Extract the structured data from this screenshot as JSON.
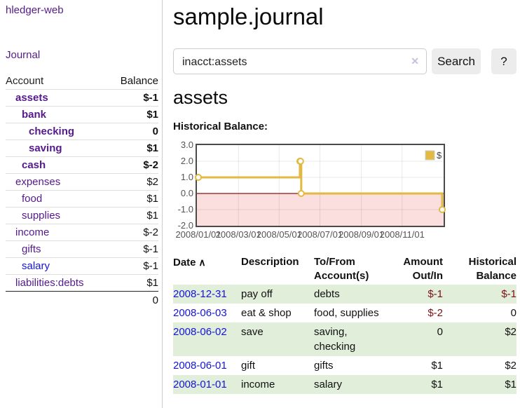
{
  "colors": {
    "accent": "#551a8b",
    "linkblue": "#1414dd",
    "negdark": "#7e1113",
    "negmuted": "#aa5555",
    "rowgreen": "#e1eeda",
    "chartline": "#e2ba41",
    "zeroline": "#8b1515",
    "negregion": "#fbdede"
  },
  "app": {
    "brand": "hledger-web",
    "nav_journal": "Journal"
  },
  "sidebar": {
    "col_account": "Account",
    "col_balance": "Balance",
    "rows": [
      {
        "account": "assets",
        "balance": "$-1",
        "depth": 1,
        "bold": true,
        "neg": "dark"
      },
      {
        "account": "bank",
        "balance": "$1",
        "depth": 2,
        "bold": true
      },
      {
        "account": "checking",
        "balance": "0",
        "depth": 3,
        "bold": true
      },
      {
        "account": "saving",
        "balance": "$1",
        "depth": 3,
        "bold": true
      },
      {
        "account": "cash",
        "balance": "$-2",
        "depth": 2,
        "bold": true,
        "neg": "dark"
      },
      {
        "account": "expenses",
        "balance": "$2",
        "depth": 1
      },
      {
        "account": "food",
        "balance": "$1",
        "depth": 2
      },
      {
        "account": "supplies",
        "balance": "$1",
        "depth": 2
      },
      {
        "account": "income",
        "balance": "$-2",
        "depth": 1,
        "neg": "muted"
      },
      {
        "account": "gifts",
        "balance": "$-1",
        "depth": 2,
        "neg": "muted"
      },
      {
        "account": "salary",
        "balance": "$-1",
        "depth": 2,
        "neg": "muted",
        "unvisited": true
      },
      {
        "account": "liabilities:debts",
        "balance": "$1",
        "depth": 1
      }
    ],
    "total": "0"
  },
  "main": {
    "title": "sample.journal",
    "search": {
      "value": "inacct:assets",
      "clear_icon": "✕",
      "button": "Search",
      "help_button": "?"
    },
    "account_heading": "assets",
    "chart_label": "Historical Balance:"
  },
  "chart_data": {
    "type": "line",
    "step": true,
    "title": "Historical Balance",
    "series": [
      {
        "name": "$",
        "points": [
          [
            "2008-01-01",
            1
          ],
          [
            "2008-06-01",
            2
          ],
          [
            "2008-06-02",
            2
          ],
          [
            "2008-06-03",
            0
          ],
          [
            "2008-12-31",
            -1
          ]
        ]
      }
    ],
    "xlim": [
      "2008-01-01",
      "2008-12-31"
    ],
    "ylim": [
      -2,
      3
    ],
    "y_ticks": [
      "3.0",
      "2.0",
      "1.0",
      "0.0",
      "-1.0",
      "-2.0"
    ],
    "x_ticks": [
      "2008/01/01",
      "2008/03/01",
      "2008/05/01",
      "2008/07/01",
      "2008/09/01",
      "2008/11/01"
    ],
    "grid": true,
    "legend_position": "top-right",
    "negative_region_shaded": true
  },
  "register": {
    "sort_icon": "∧",
    "columns": [
      {
        "label": "Date",
        "align": "left",
        "sorted": true
      },
      {
        "label": "Description",
        "align": "left"
      },
      {
        "label": "To/From Account(s)",
        "align": "left"
      },
      {
        "label": "Amount Out/In",
        "align": "right"
      },
      {
        "label": "Historical Balance",
        "align": "right"
      }
    ],
    "rows": [
      {
        "date": "2008-12-31",
        "description": "pay off",
        "accounts": "debts",
        "amount": "$-1",
        "balance": "$-1",
        "amount_neg": true,
        "balance_neg": true
      },
      {
        "date": "2008-06-03",
        "description": "eat & shop",
        "accounts": "food, supplies",
        "amount": "$-2",
        "balance": "0",
        "amount_neg": true
      },
      {
        "date": "2008-06-02",
        "description": "save",
        "accounts": "saving, checking",
        "amount": "0",
        "balance": "$2"
      },
      {
        "date": "2008-06-01",
        "description": "gift",
        "accounts": "gifts",
        "amount": "$1",
        "balance": "$2"
      },
      {
        "date": "2008-01-01",
        "description": "income",
        "accounts": "salary",
        "amount": "$1",
        "balance": "$1"
      }
    ]
  }
}
